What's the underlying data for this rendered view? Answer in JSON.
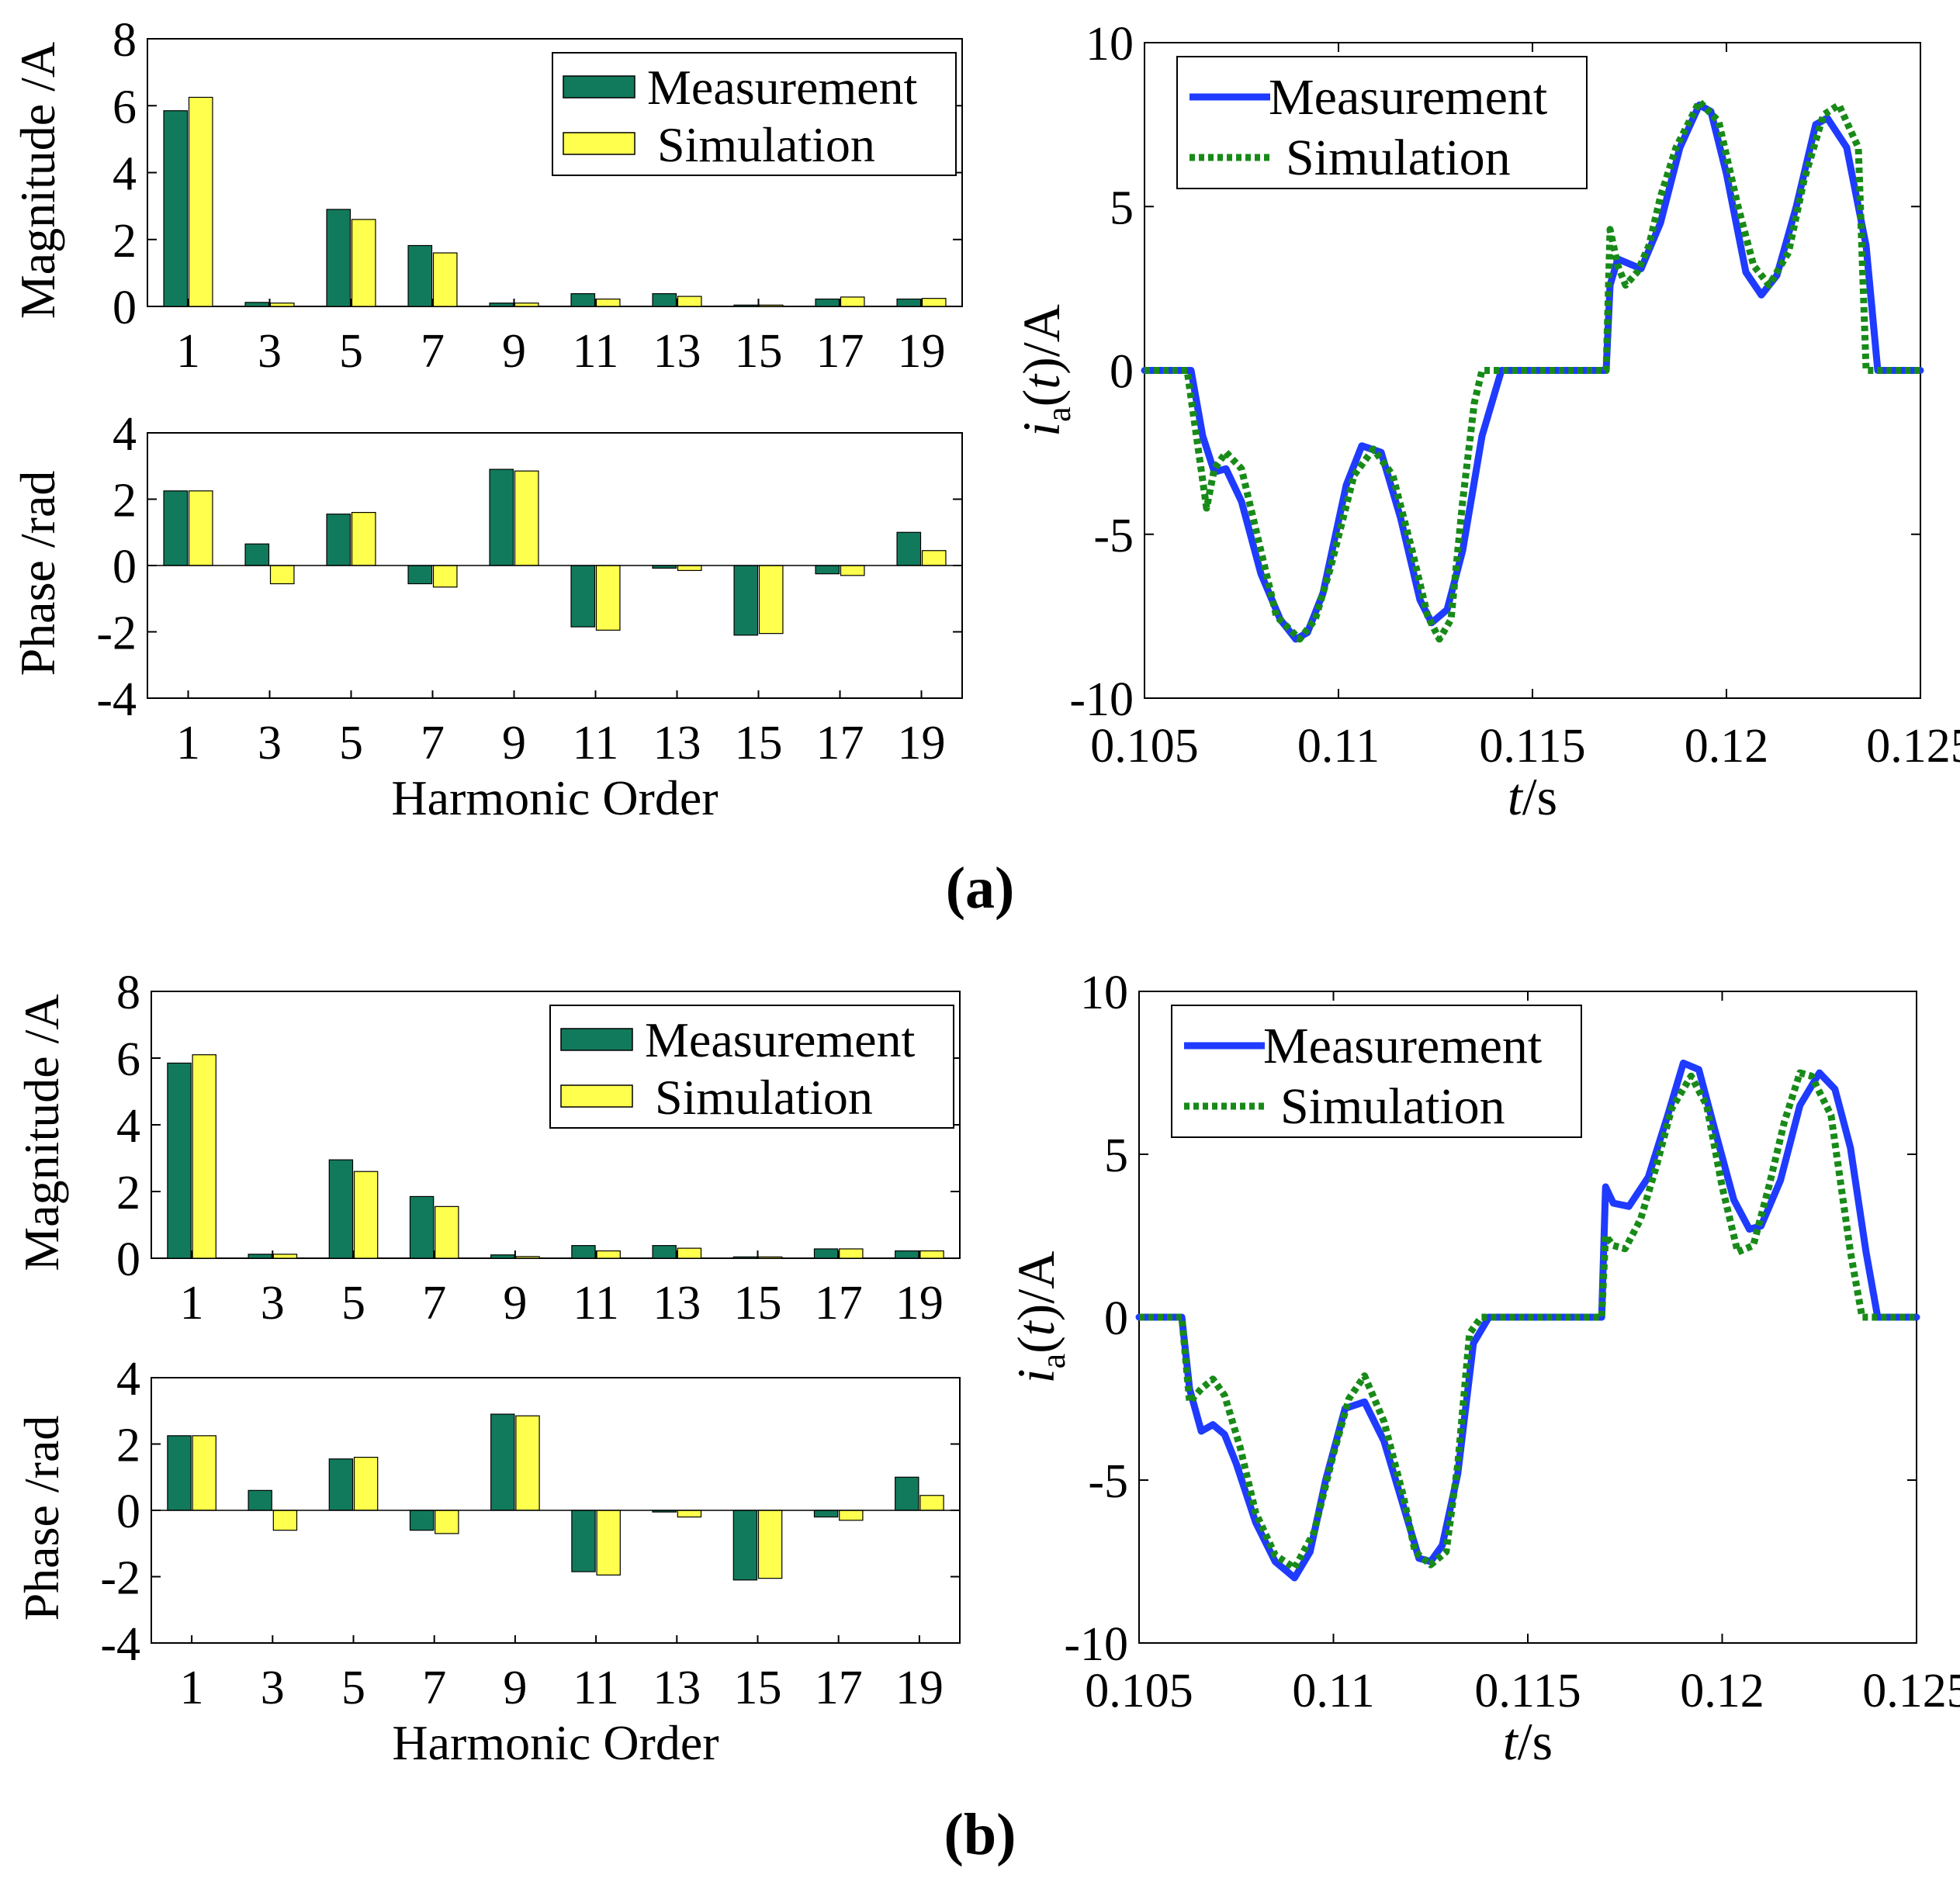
{
  "panels": [
    {
      "label": "(a)"
    },
    {
      "label": "(b)"
    }
  ],
  "colors": {
    "measurement_bar": "#127a5c",
    "simulation_bar": "#ffff4d",
    "measurement_line": "#1f3bff",
    "simulation_line": "#188a18"
  },
  "chart_data": [
    {
      "panel": "a",
      "id": "a-magnitude",
      "type": "bar",
      "categories": [
        "1",
        "3",
        "5",
        "7",
        "9",
        "11",
        "13",
        "15",
        "17",
        "19"
      ],
      "series": [
        {
          "name": "Measurement",
          "values": [
            5.85,
            0.12,
            2.9,
            1.82,
            0.1,
            0.38,
            0.38,
            0.04,
            0.22,
            0.22
          ]
        },
        {
          "name": "Simulation",
          "values": [
            6.25,
            0.1,
            2.6,
            1.6,
            0.1,
            0.22,
            0.3,
            0.04,
            0.28,
            0.24
          ]
        }
      ],
      "ylabel": "Magnitude /A",
      "xlabel": "",
      "ylim": [
        0,
        8
      ],
      "yticks": [
        0,
        2,
        4,
        6,
        8
      ],
      "legend": {
        "position": "top-right",
        "entries": [
          "Measurement",
          "Simulation"
        ]
      }
    },
    {
      "panel": "a",
      "id": "a-phase",
      "type": "bar",
      "categories": [
        "1",
        "3",
        "5",
        "7",
        "9",
        "11",
        "13",
        "15",
        "17",
        "19"
      ],
      "series": [
        {
          "name": "Measurement",
          "values": [
            2.25,
            0.65,
            1.55,
            -0.55,
            2.9,
            -1.85,
            -0.08,
            -2.1,
            -0.25,
            1.0
          ]
        },
        {
          "name": "Simulation",
          "values": [
            2.25,
            -0.55,
            1.6,
            -0.65,
            2.85,
            -1.95,
            -0.15,
            -2.05,
            -0.3,
            0.45
          ]
        }
      ],
      "ylabel": "Phase /rad",
      "xlabel": "Harmonic Order",
      "ylim": [
        -4,
        4
      ],
      "yticks": [
        -4,
        -2,
        0,
        2,
        4
      ]
    },
    {
      "panel": "a",
      "id": "a-current",
      "type": "line",
      "ylabel_main": "i",
      "ylabel_sub": "a",
      "ylabel_var": "t",
      "ylabel_unit": "/A",
      "xlabel_var": "t",
      "xlabel_unit": "/s",
      "xlim": [
        0.105,
        0.125
      ],
      "ylim": [
        -10,
        10
      ],
      "xticks": [
        "0.105",
        "0.11",
        "0.115",
        "0.12",
        "0.125"
      ],
      "yticks": [
        "-10",
        "-5",
        "0",
        "5",
        "10"
      ],
      "legend": {
        "position": "top-left",
        "entries": [
          "Measurement",
          "Simulation"
        ]
      },
      "series": [
        {
          "name": "Measurement",
          "style": "solid",
          "x": [
            0.105,
            0.1062,
            0.1065,
            0.1068,
            0.1071,
            0.1075,
            0.108,
            0.1085,
            0.1089,
            0.1092,
            0.1096,
            0.1102,
            0.1106,
            0.1111,
            0.1116,
            0.1121,
            0.1124,
            0.1128,
            0.1132,
            0.1137,
            0.1142,
            0.1145,
            0.115,
            0.1155,
            0.116,
            0.1169,
            0.117,
            0.1172,
            0.1178,
            0.1183,
            0.1188,
            0.1193,
            0.1196,
            0.12,
            0.1205,
            0.1209,
            0.1213,
            0.1218,
            0.1223,
            0.1226,
            0.1231,
            0.1236,
            0.1239,
            0.1242,
            0.125
          ],
          "y": [
            0,
            0,
            -2,
            -3.1,
            -3.0,
            -4.0,
            -6.2,
            -7.6,
            -8.2,
            -8.0,
            -6.8,
            -3.5,
            -2.3,
            -2.5,
            -4.5,
            -7.0,
            -7.7,
            -7.3,
            -5.5,
            -2.0,
            0,
            0,
            0,
            0,
            0,
            0,
            2.6,
            3.4,
            3.1,
            4.5,
            6.8,
            8.1,
            7.9,
            6.0,
            3.0,
            2.3,
            2.9,
            5.0,
            7.5,
            7.7,
            6.8,
            3.8,
            0,
            0,
            0
          ]
        },
        {
          "name": "Simulation",
          "style": "dotted",
          "x": [
            0.105,
            0.1061,
            0.1066,
            0.1068,
            0.1071,
            0.1075,
            0.1079,
            0.1084,
            0.109,
            0.1094,
            0.1098,
            0.1104,
            0.1109,
            0.1114,
            0.1119,
            0.1123,
            0.1126,
            0.1129,
            0.1132,
            0.1135,
            0.1137,
            0.1145,
            0.1155,
            0.1165,
            0.1169,
            0.117,
            0.1172,
            0.1174,
            0.1177,
            0.118,
            0.1183,
            0.1187,
            0.1193,
            0.1198,
            0.1203,
            0.1207,
            0.1211,
            0.1216,
            0.122,
            0.1225,
            0.1229,
            0.1234,
            0.1236,
            0.1242,
            0.125
          ],
          "y": [
            0,
            0,
            -4.2,
            -3.0,
            -2.5,
            -3.0,
            -5.0,
            -7.5,
            -8.2,
            -7.6,
            -6.0,
            -3.2,
            -2.4,
            -3.2,
            -5.5,
            -7.5,
            -8.2,
            -7.6,
            -4.0,
            -1.0,
            0,
            0,
            0,
            0,
            0,
            4.3,
            3.2,
            2.6,
            3.0,
            3.8,
            5.3,
            6.8,
            8.2,
            7.6,
            5.0,
            3.2,
            2.6,
            3.6,
            5.8,
            7.8,
            8.1,
            6.8,
            0,
            0,
            0
          ]
        }
      ]
    },
    {
      "panel": "b",
      "id": "b-magnitude",
      "type": "bar",
      "categories": [
        "1",
        "3",
        "5",
        "7",
        "9",
        "11",
        "13",
        "15",
        "17",
        "19"
      ],
      "series": [
        {
          "name": "Measurement",
          "values": [
            5.85,
            0.12,
            2.95,
            1.85,
            0.1,
            0.38,
            0.38,
            0.04,
            0.28,
            0.22
          ]
        },
        {
          "name": "Simulation",
          "values": [
            6.1,
            0.12,
            2.6,
            1.55,
            0.05,
            0.22,
            0.3,
            0.04,
            0.28,
            0.22
          ]
        }
      ],
      "ylabel": "Magnitude /A",
      "xlabel": "",
      "ylim": [
        0,
        8
      ],
      "yticks": [
        0,
        2,
        4,
        6,
        8
      ],
      "legend": {
        "position": "top-right",
        "entries": [
          "Measurement",
          "Simulation"
        ]
      }
    },
    {
      "panel": "b",
      "id": "b-phase",
      "type": "bar",
      "categories": [
        "1",
        "3",
        "5",
        "7",
        "9",
        "11",
        "13",
        "15",
        "17",
        "19"
      ],
      "series": [
        {
          "name": "Measurement",
          "values": [
            2.25,
            0.6,
            1.55,
            -0.6,
            2.9,
            -1.85,
            -0.05,
            -2.1,
            -0.2,
            1.0
          ]
        },
        {
          "name": "Simulation",
          "values": [
            2.25,
            -0.6,
            1.6,
            -0.7,
            2.85,
            -1.95,
            -0.2,
            -2.05,
            -0.3,
            0.45
          ]
        }
      ],
      "ylabel": "Phase /rad",
      "xlabel": "Harmonic Order",
      "ylim": [
        -4,
        4
      ],
      "yticks": [
        -4,
        -2,
        0,
        2,
        4
      ]
    },
    {
      "panel": "b",
      "id": "b-current",
      "type": "line",
      "ylabel_main": "i",
      "ylabel_sub": "a",
      "ylabel_var": "t",
      "ylabel_unit": "/A",
      "xlabel_var": "t",
      "xlabel_unit": "/s",
      "xlim": [
        0.105,
        0.125
      ],
      "ylim": [
        -10,
        10
      ],
      "xticks": [
        "0.105",
        "0.11",
        "0.115",
        "0.12",
        "0.125"
      ],
      "yticks": [
        "-10",
        "-5",
        "0",
        "5",
        "10"
      ],
      "legend": {
        "position": "top-left",
        "entries": [
          "Measurement",
          "Simulation"
        ]
      },
      "series": [
        {
          "name": "Measurement",
          "style": "solid",
          "x": [
            0.105,
            0.1061,
            0.1063,
            0.1066,
            0.1069,
            0.1072,
            0.1075,
            0.108,
            0.1085,
            0.109,
            0.1094,
            0.1098,
            0.1103,
            0.1108,
            0.1113,
            0.1118,
            0.1122,
            0.1125,
            0.1128,
            0.1132,
            0.1136,
            0.114,
            0.115,
            0.116,
            0.1169,
            0.117,
            0.1172,
            0.1176,
            0.1181,
            0.1186,
            0.119,
            0.1194,
            0.1198,
            0.1203,
            0.1207,
            0.121,
            0.1215,
            0.122,
            0.1225,
            0.1229,
            0.1233,
            0.1237,
            0.124,
            0.1244,
            0.125
          ],
          "y": [
            0,
            0,
            -2.2,
            -3.5,
            -3.3,
            -3.6,
            -4.5,
            -6.3,
            -7.5,
            -8.0,
            -7.2,
            -5.0,
            -2.8,
            -2.6,
            -3.8,
            -5.8,
            -7.4,
            -7.5,
            -7.0,
            -4.8,
            -0.8,
            0,
            0,
            0,
            0,
            4.0,
            3.5,
            3.4,
            4.3,
            6.2,
            7.8,
            7.6,
            5.8,
            3.6,
            2.7,
            2.8,
            4.2,
            6.5,
            7.5,
            7.0,
            5.2,
            2.0,
            0,
            0,
            0
          ]
        },
        {
          "name": "Simulation",
          "style": "dotted",
          "x": [
            0.105,
            0.1061,
            0.1063,
            0.1066,
            0.1069,
            0.1072,
            0.1076,
            0.108,
            0.1085,
            0.109,
            0.1095,
            0.11,
            0.1104,
            0.1108,
            0.1113,
            0.1118,
            0.1121,
            0.1125,
            0.1129,
            0.1132,
            0.1135,
            0.1138,
            0.115,
            0.116,
            0.1169,
            0.117,
            0.1172,
            0.1175,
            0.1179,
            0.1183,
            0.1187,
            0.1192,
            0.1196,
            0.12,
            0.1204,
            0.1208,
            0.1212,
            0.1216,
            0.122,
            0.1223,
            0.1228,
            0.1233,
            0.1236,
            0.124,
            0.125
          ],
          "y": [
            0,
            0,
            -2.6,
            -2.2,
            -1.9,
            -2.4,
            -4.0,
            -6.0,
            -7.3,
            -7.7,
            -6.6,
            -4.2,
            -2.5,
            -1.8,
            -3.2,
            -5.5,
            -7.2,
            -7.6,
            -7.2,
            -4.5,
            -0.5,
            0,
            0,
            0,
            0,
            2.5,
            2.2,
            2.1,
            3.0,
            4.6,
            6.4,
            7.4,
            6.5,
            4.0,
            2.0,
            2.2,
            4.0,
            6.0,
            7.5,
            7.4,
            6.2,
            2.0,
            0,
            0,
            0
          ]
        }
      ]
    }
  ]
}
